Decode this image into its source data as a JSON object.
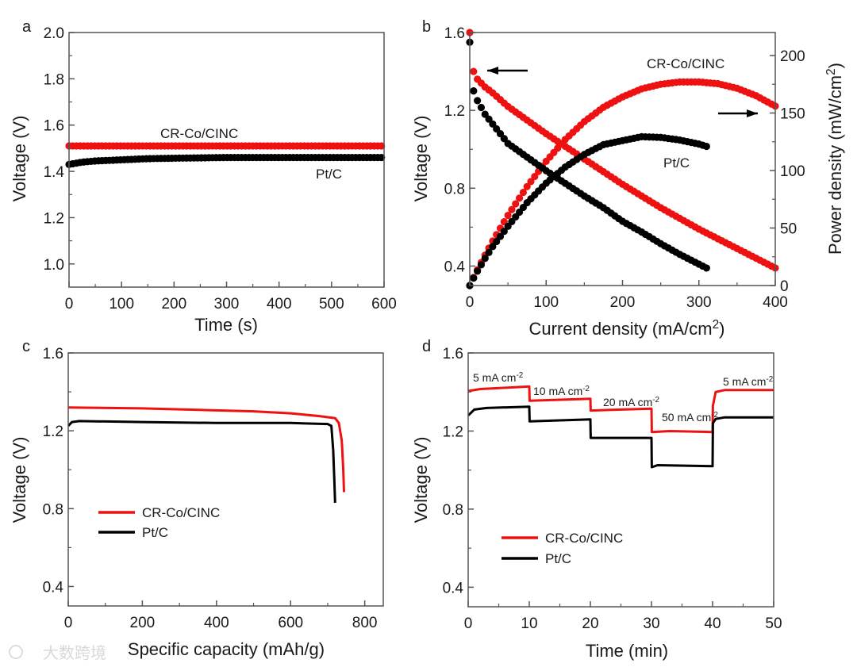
{
  "figure": {
    "watermark": "大数跨境"
  },
  "chart_data": [
    {
      "panel": "a",
      "type": "scatter",
      "xlabel": [
        {
          "t": "Time (s)"
        }
      ],
      "ylabel": [
        {
          "t": "Voltage (V)"
        }
      ],
      "xlim": [
        0,
        600
      ],
      "ylim": [
        0.9,
        2.0
      ],
      "xticks": [
        0,
        100,
        200,
        300,
        400,
        500,
        600
      ],
      "xtick_labels": [
        "0",
        "100",
        "200",
        "300",
        "400",
        "500",
        "600"
      ],
      "xminor": [
        50,
        150,
        250,
        350,
        450,
        550
      ],
      "yticks": [
        1.0,
        1.2,
        1.4,
        1.6,
        1.8,
        2.0
      ],
      "ytick_labels": [
        "1.0",
        "1.2",
        "1.4",
        "1.6",
        "1.8",
        "2.0"
      ],
      "yminor": [
        1.1,
        1.3,
        1.5,
        1.7,
        1.9
      ],
      "grid": false,
      "series": [
        {
          "name": "CR-Co/CINC",
          "color": "#ee1111",
          "style": "dots",
          "step": 7,
          "points": [
            [
              0,
              1.51
            ],
            [
              100,
              1.51
            ],
            [
              200,
              1.51
            ],
            [
              300,
              1.51
            ],
            [
              400,
              1.51
            ],
            [
              500,
              1.51
            ],
            [
              600,
              1.51
            ]
          ]
        },
        {
          "name": "Pt/C",
          "color": "#000000",
          "style": "dots",
          "step": 7,
          "points": [
            [
              0,
              1.43
            ],
            [
              25,
              1.44
            ],
            [
              50,
              1.445
            ],
            [
              100,
              1.45
            ],
            [
              150,
              1.455
            ],
            [
              200,
              1.457
            ],
            [
              300,
              1.46
            ],
            [
              400,
              1.46
            ],
            [
              500,
              1.46
            ],
            [
              600,
              1.46
            ]
          ]
        }
      ],
      "annotations": [
        {
          "parts": [
            {
              "t": "CR-Co/CINC"
            }
          ]
        },
        {
          "parts": [
            {
              "t": "Pt/C"
            }
          ]
        }
      ]
    },
    {
      "panel": "b",
      "type": "scatter",
      "xlabel": [
        {
          "t": "Current density (mA/cm"
        },
        {
          "t": "2",
          "sup": true
        },
        {
          "t": ")"
        }
      ],
      "ylabel": [
        {
          "t": "Voltage (V)"
        }
      ],
      "y2label": [
        {
          "t": "Power density (mW/cm"
        },
        {
          "t": "2",
          "sup": true
        },
        {
          "t": ")"
        }
      ],
      "xlim": [
        0,
        400
      ],
      "ylim": [
        0.3,
        1.6
      ],
      "y2lim": [
        0,
        220
      ],
      "xticks": [
        0,
        100,
        200,
        300,
        400
      ],
      "xtick_labels": [
        "0",
        "100",
        "200",
        "300",
        "400"
      ],
      "xminor": [
        50,
        150,
        250,
        350
      ],
      "yticks": [
        0.4,
        0.8,
        1.2,
        1.6
      ],
      "ytick_labels": [
        "0.4",
        "0.8",
        "1.2",
        "1.6"
      ],
      "yminor": [
        0.6,
        1.0,
        1.4
      ],
      "y2ticks": [
        0,
        50,
        100,
        150,
        200
      ],
      "y2tick_labels": [
        "0",
        "50",
        "100",
        "150",
        "200"
      ],
      "y2minor": [
        25,
        75,
        125,
        175
      ],
      "grid": false,
      "series": [
        {
          "name": "CR-Co/CINC voltage",
          "color": "#ee1111",
          "style": "dots",
          "step": 5,
          "axis": "y",
          "points": [
            [
              0,
              1.6
            ],
            [
              2,
              1.48
            ],
            [
              5,
              1.4
            ],
            [
              10,
              1.36
            ],
            [
              20,
              1.32
            ],
            [
              30,
              1.29
            ],
            [
              50,
              1.22
            ],
            [
              75,
              1.15
            ],
            [
              100,
              1.08
            ],
            [
              125,
              1.015
            ],
            [
              150,
              0.95
            ],
            [
              175,
              0.885
            ],
            [
              200,
              0.82
            ],
            [
              225,
              0.76
            ],
            [
              250,
              0.7
            ],
            [
              275,
              0.645
            ],
            [
              300,
              0.59
            ],
            [
              325,
              0.54
            ],
            [
              350,
              0.49
            ],
            [
              375,
              0.44
            ],
            [
              400,
              0.39
            ]
          ]
        },
        {
          "name": "CR-Co/CINC power",
          "color": "#ee1111",
          "style": "dots",
          "step": 5,
          "axis": "y2",
          "points": [
            [
              0,
              0
            ],
            [
              2,
              3.0
            ],
            [
              5,
              7.0
            ],
            [
              10,
              13.6
            ],
            [
              20,
              26.4
            ],
            [
              30,
              38.7
            ],
            [
              50,
              61
            ],
            [
              75,
              86
            ],
            [
              100,
              108
            ],
            [
              125,
              127
            ],
            [
              150,
              142.5
            ],
            [
              175,
              155
            ],
            [
              200,
              164
            ],
            [
              225,
              171
            ],
            [
              250,
              175
            ],
            [
              275,
              177
            ],
            [
              300,
              177
            ],
            [
              325,
              175.5
            ],
            [
              350,
              171.5
            ],
            [
              375,
              165
            ],
            [
              400,
              156
            ]
          ]
        },
        {
          "name": "Pt/C voltage",
          "color": "#000000",
          "style": "dots",
          "step": 5,
          "axis": "y",
          "points": [
            [
              0,
              1.55
            ],
            [
              2,
              1.38
            ],
            [
              5,
              1.3
            ],
            [
              10,
              1.25
            ],
            [
              20,
              1.18
            ],
            [
              30,
              1.13
            ],
            [
              50,
              1.03
            ],
            [
              75,
              0.96
            ],
            [
              100,
              0.89
            ],
            [
              125,
              0.825
            ],
            [
              150,
              0.76
            ],
            [
              175,
              0.7
            ],
            [
              200,
              0.63
            ],
            [
              225,
              0.575
            ],
            [
              250,
              0.515
            ],
            [
              275,
              0.46
            ],
            [
              300,
              0.41
            ],
            [
              310,
              0.39
            ]
          ]
        },
        {
          "name": "Pt/C power",
          "color": "#000000",
          "style": "dots",
          "step": 5,
          "axis": "y2",
          "points": [
            [
              0,
              0
            ],
            [
              2,
              2.8
            ],
            [
              5,
              6.5
            ],
            [
              10,
              12.5
            ],
            [
              20,
              23.6
            ],
            [
              30,
              33.9
            ],
            [
              50,
              51.5
            ],
            [
              75,
              72
            ],
            [
              100,
              89
            ],
            [
              125,
              103
            ],
            [
              150,
              114
            ],
            [
              175,
              122.5
            ],
            [
              200,
              126
            ],
            [
              225,
              129.4
            ],
            [
              250,
              128.8
            ],
            [
              275,
              126.5
            ],
            [
              300,
              123
            ],
            [
              310,
              121
            ]
          ]
        }
      ],
      "annotations": [
        {
          "parts": [
            {
              "t": "CR-Co/CINC"
            }
          ]
        },
        {
          "parts": [
            {
              "t": "Pt/C"
            }
          ]
        }
      ]
    },
    {
      "panel": "c",
      "type": "line",
      "xlabel": [
        {
          "t": "Specific capacity (mAh/g)"
        }
      ],
      "ylabel": [
        {
          "t": "Voltage (V)"
        }
      ],
      "xlim": [
        0,
        850
      ],
      "ylim": [
        0.3,
        1.6
      ],
      "xticks": [
        0,
        200,
        400,
        600,
        800
      ],
      "xtick_labels": [
        "0",
        "200",
        "400",
        "600",
        "800"
      ],
      "xminor": [
        100,
        300,
        500,
        700
      ],
      "yticks": [
        0.4,
        0.8,
        1.2,
        1.6
      ],
      "ytick_labels": [
        "0.4",
        "0.8",
        "1.2",
        "1.6"
      ],
      "yminor": [
        0.6,
        1.0,
        1.4
      ],
      "grid": false,
      "legend": "center-left",
      "series": [
        {
          "name": "CR-Co/CINC",
          "color": "#ee1111",
          "style": "line",
          "points": [
            [
              0,
              1.32
            ],
            [
              200,
              1.315
            ],
            [
              400,
              1.305
            ],
            [
              500,
              1.3
            ],
            [
              600,
              1.29
            ],
            [
              680,
              1.275
            ],
            [
              720,
              1.265
            ],
            [
              730,
              1.24
            ],
            [
              738,
              1.15
            ],
            [
              742,
              1.0
            ],
            [
              744,
              0.885
            ]
          ]
        },
        {
          "name": "Pt/C",
          "color": "#000000",
          "style": "line",
          "points": [
            [
              0,
              1.225
            ],
            [
              10,
              1.245
            ],
            [
              30,
              1.25
            ],
            [
              200,
              1.245
            ],
            [
              400,
              1.24
            ],
            [
              600,
              1.24
            ],
            [
              700,
              1.235
            ],
            [
              710,
              1.225
            ],
            [
              715,
              1.1
            ],
            [
              718,
              0.95
            ],
            [
              720,
              0.83
            ]
          ]
        }
      ]
    },
    {
      "panel": "d",
      "type": "line",
      "xlabel": [
        {
          "t": "Time (min)"
        }
      ],
      "ylabel": [
        {
          "t": "Voltage (V)"
        }
      ],
      "xlim": [
        0,
        50
      ],
      "ylim": [
        0.3,
        1.6
      ],
      "xticks": [
        0,
        10,
        20,
        30,
        40,
        50
      ],
      "xtick_labels": [
        "0",
        "10",
        "20",
        "30",
        "40",
        "50"
      ],
      "xminor": [
        5,
        15,
        25,
        35,
        45
      ],
      "yticks": [
        0.4,
        0.8,
        1.2,
        1.6
      ],
      "ytick_labels": [
        "0.4",
        "0.8",
        "1.2",
        "1.6"
      ],
      "yminor": [
        0.6,
        1.0,
        1.4
      ],
      "grid": false,
      "legend": "lower-left",
      "series": [
        {
          "name": "CR-Co/CINC",
          "color": "#ee1111",
          "style": "line",
          "points": [
            [
              0,
              1.405
            ],
            [
              2,
              1.415
            ],
            [
              10,
              1.428
            ],
            [
              10.05,
              1.355
            ],
            [
              20,
              1.365
            ],
            [
              20.05,
              1.305
            ],
            [
              30,
              1.315
            ],
            [
              30.05,
              1.195
            ],
            [
              33,
              1.2
            ],
            [
              40,
              1.195
            ],
            [
              40.05,
              1.33
            ],
            [
              40.5,
              1.4
            ],
            [
              42,
              1.41
            ],
            [
              50,
              1.41
            ]
          ]
        },
        {
          "name": "Pt/C",
          "color": "#000000",
          "style": "line",
          "points": [
            [
              0,
              1.28
            ],
            [
              1,
              1.31
            ],
            [
              3,
              1.318
            ],
            [
              10,
              1.325
            ],
            [
              10.05,
              1.25
            ],
            [
              20,
              1.26
            ],
            [
              20.05,
              1.165
            ],
            [
              30,
              1.165
            ],
            [
              30.05,
              1.015
            ],
            [
              31,
              1.025
            ],
            [
              40,
              1.02
            ],
            [
              40.05,
              1.24
            ],
            [
              40.5,
              1.262
            ],
            [
              42,
              1.27
            ],
            [
              50,
              1.27
            ]
          ]
        }
      ],
      "annotations": [
        {
          "parts": [
            {
              "t": "5 mA cm"
            },
            {
              "t": "-2",
              "sup": true
            }
          ]
        },
        {
          "parts": [
            {
              "t": "10 mA cm"
            },
            {
              "t": "-2",
              "sup": true
            }
          ]
        },
        {
          "parts": [
            {
              "t": "20 mA cm"
            },
            {
              "t": "-2",
              "sup": true
            }
          ]
        },
        {
          "parts": [
            {
              "t": "50 mA cm"
            },
            {
              "t": "-2",
              "sup": true
            }
          ]
        },
        {
          "parts": [
            {
              "t": "5 mA cm"
            },
            {
              "t": "-2",
              "sup": true
            }
          ]
        }
      ]
    }
  ]
}
